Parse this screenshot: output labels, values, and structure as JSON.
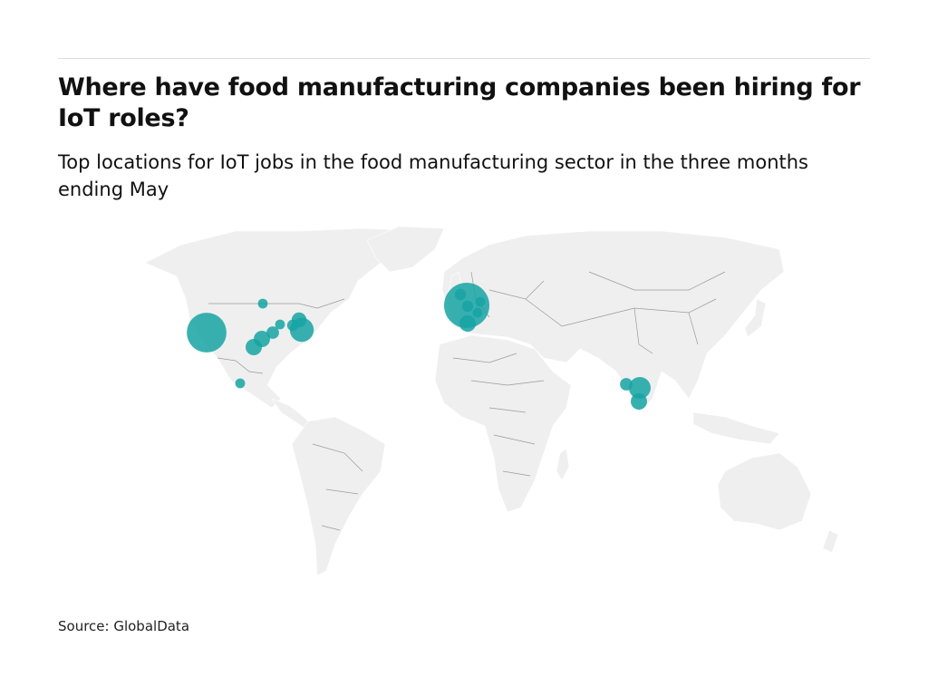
{
  "header": {
    "title": "Where have food manufacturing companies been hiring for IoT roles?",
    "subtitle": "Top locations for IoT jobs in the food manufacturing sector in the three months ending May"
  },
  "footer": {
    "source": "Source: GlobalData"
  },
  "colors": {
    "bubble": "#16a3a3",
    "land": "#efefef",
    "border": "#9a9a9a"
  },
  "chart_data": {
    "type": "bubble-map",
    "title": "Where have food manufacturing companies been hiring for IoT roles?",
    "subtitle": "Top locations for IoT jobs in the food manufacturing sector in the three months ending May",
    "size_encoding": "relative job count",
    "values": [
      100,
      6,
      17,
      17,
      10,
      6,
      14,
      8,
      36,
      6,
      130,
      8,
      8,
      6,
      6,
      17,
      10,
      30,
      17
    ]
  }
}
